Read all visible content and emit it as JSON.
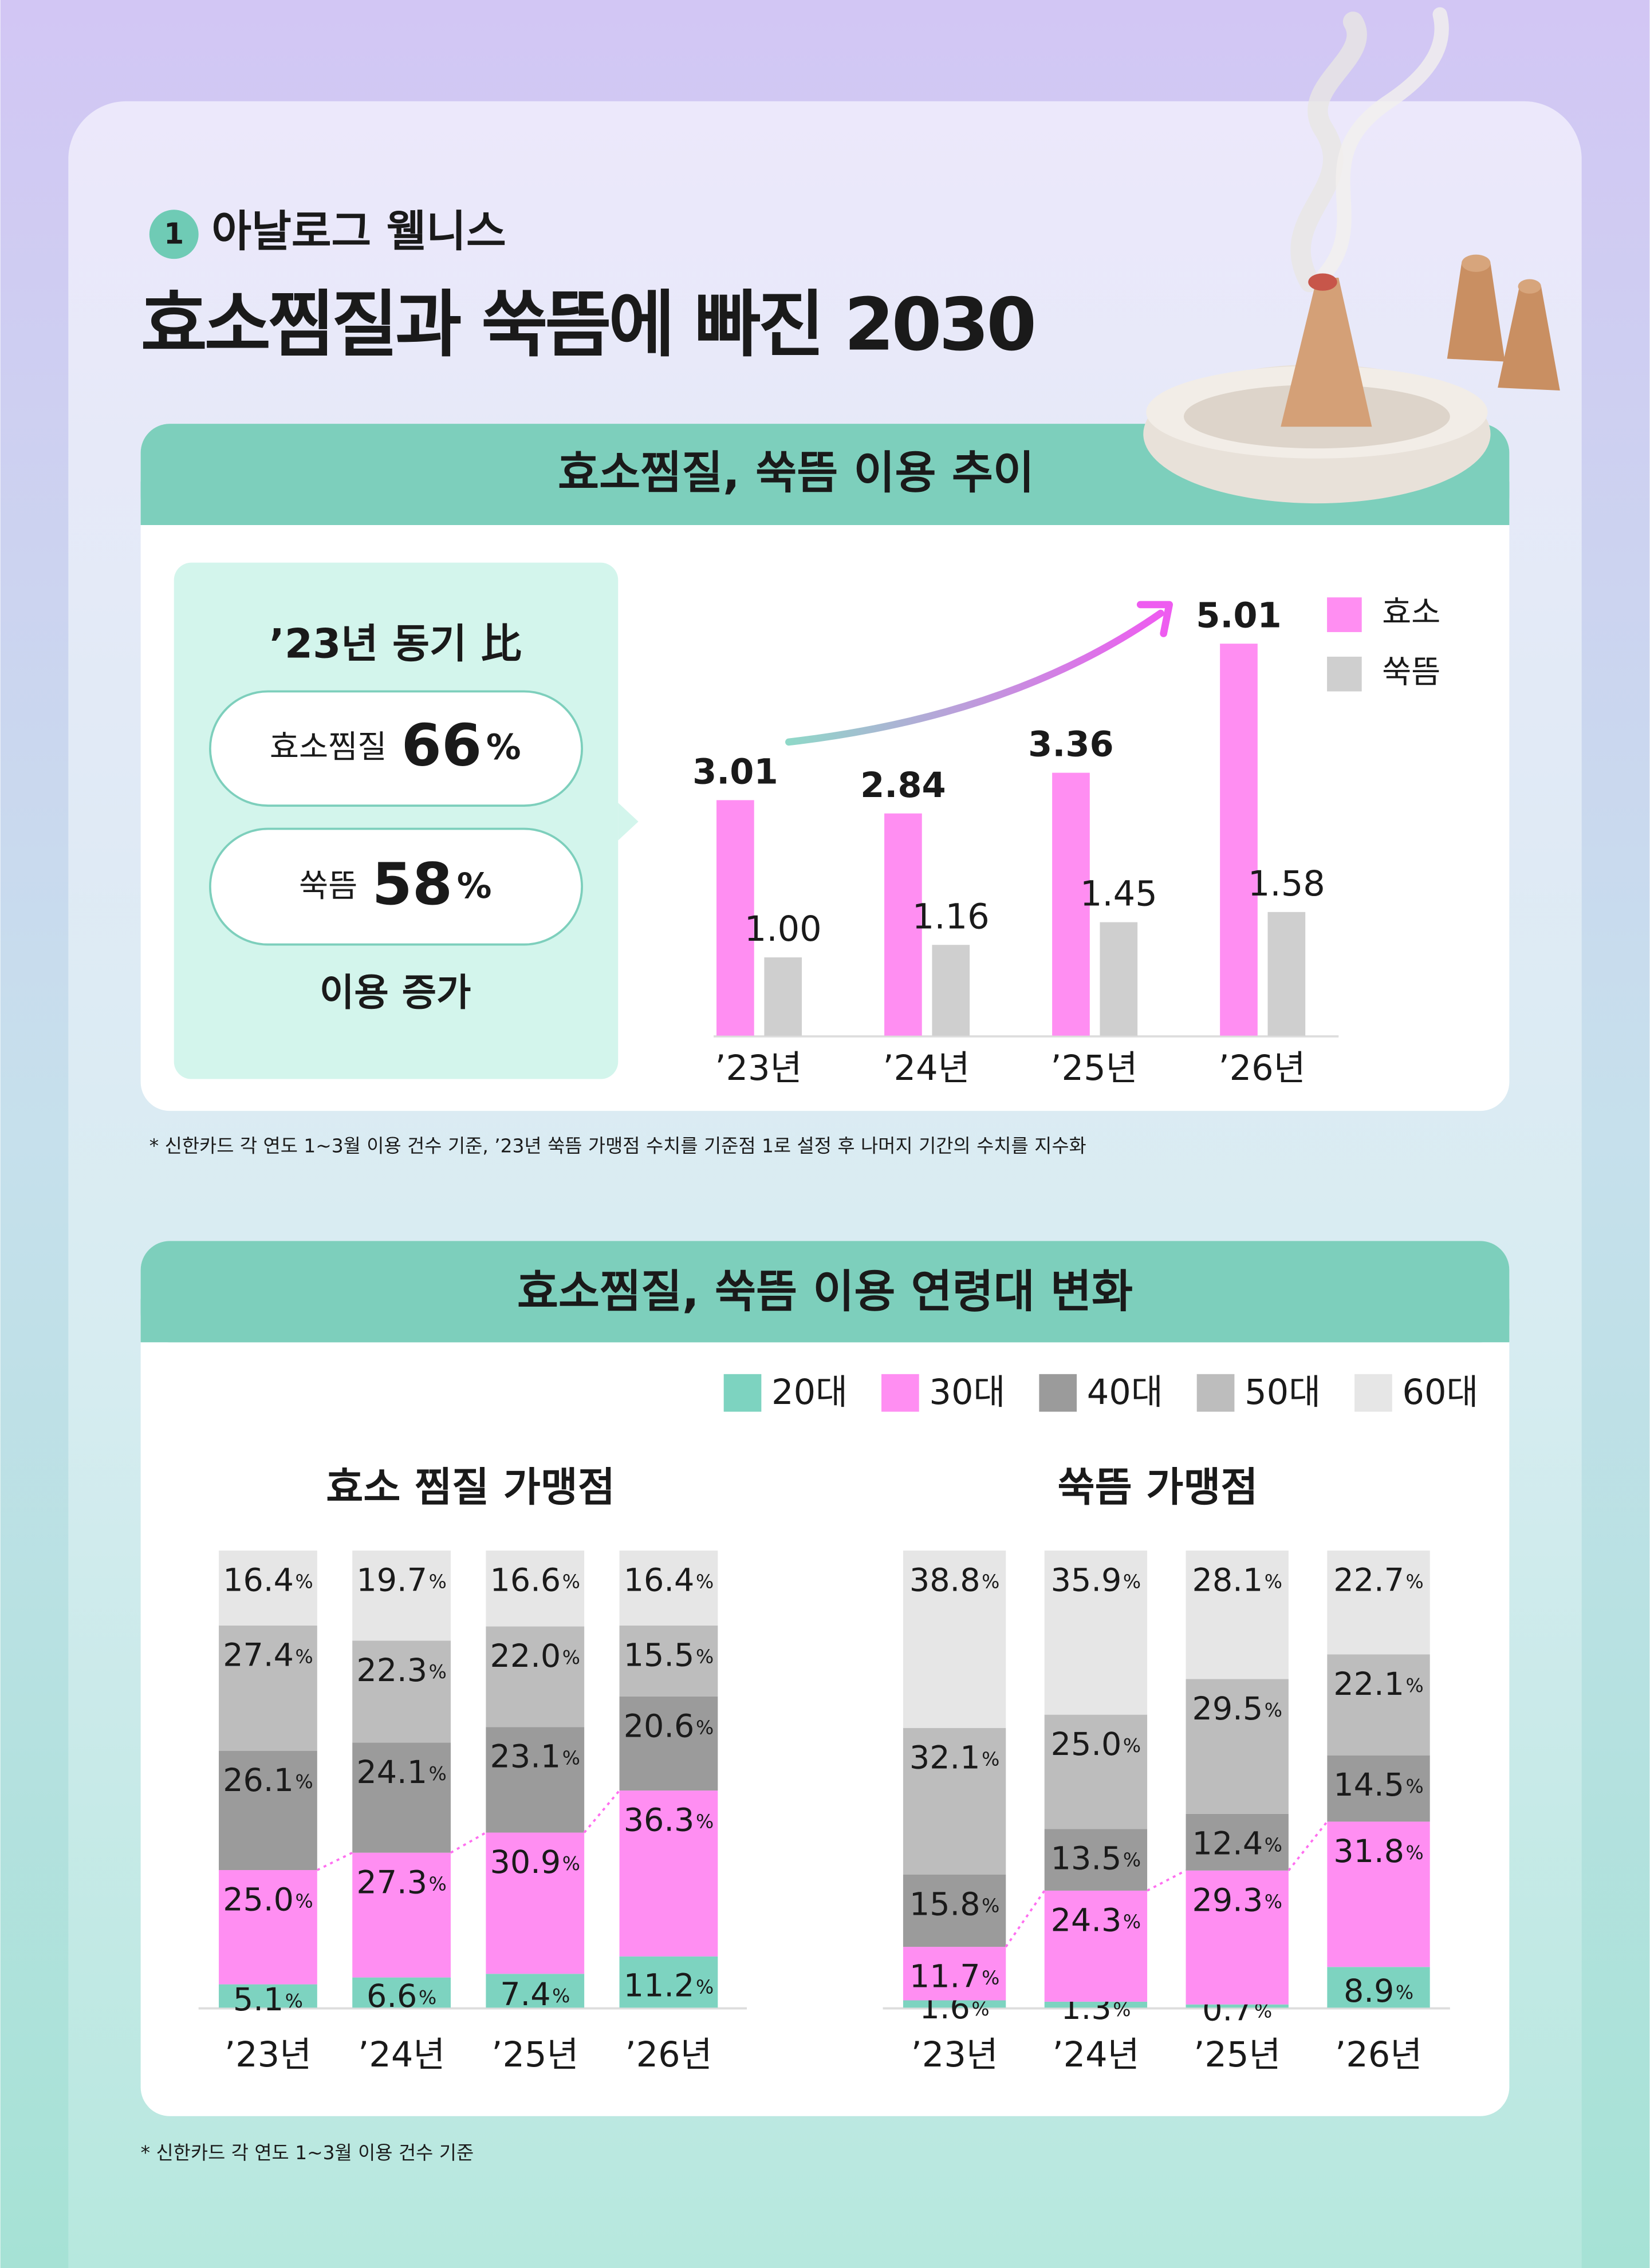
{
  "header": {
    "badge": "1",
    "category": "아날로그 웰니스",
    "title": "효소찜질과 쑥뜸에 빠진 2030"
  },
  "trend_panel": {
    "title": "효소찜질, 쑥뜸 이용 추이",
    "summary": {
      "heading": "’23년 동기 比",
      "items": [
        {
          "label": "효소찜질",
          "value": 66,
          "unit": "%"
        },
        {
          "label": "쑥뜸",
          "value": 58,
          "unit": "%"
        }
      ],
      "footer": "이용 증가"
    },
    "note": "* 신한카드 각 연도 1~3월 이용 건수 기준, ’23년 쑥뜸 가맹점 수치를 기준점 1로 설정 후 나머지 기간의 수치를 지수화"
  },
  "age_panel": {
    "title": "효소찜질, 쑥뜸 이용 연령대 변화",
    "note": "* 신한카드 각 연도 1~3월 이용 건수 기준"
  },
  "chart_data": [
    {
      "type": "bar",
      "legend": "upper right",
      "categories": [
        "’23년",
        "’24년",
        "’25년",
        "’26년"
      ],
      "series": [
        {
          "name": "효소",
          "color": "#ff8ef2",
          "values": [
            3.01,
            2.84,
            3.36,
            5.01
          ]
        },
        {
          "name": "쑥뜸",
          "color": "#cfcfcf",
          "values": [
            1.0,
            1.16,
            1.45,
            1.58
          ],
          "value_labels": [
            "1.00",
            "1.16",
            "1.45",
            "1.58"
          ]
        }
      ]
    },
    {
      "type": "stacked_bar",
      "title": "효소 찜질 가맹점",
      "unit": "%",
      "categories": [
        "’23년",
        "’24년",
        "’25년",
        "’26년"
      ],
      "series": [
        {
          "name": "20대",
          "color": "#7dd3c0",
          "values": [
            5.1,
            6.6,
            7.4,
            11.2
          ],
          "value_labels": [
            "5.1",
            "6.6",
            "7.4",
            "11.2"
          ]
        },
        {
          "name": "30대",
          "color": "#ff8ef2",
          "values": [
            25.0,
            27.3,
            30.9,
            36.3
          ],
          "value_labels": [
            "25.0",
            "27.3",
            "30.9",
            "36.3"
          ]
        },
        {
          "name": "40대",
          "color": "#9b9b9b",
          "values": [
            26.1,
            24.1,
            23.1,
            20.6
          ],
          "value_labels": [
            "26.1",
            "24.1",
            "23.1",
            "20.6"
          ]
        },
        {
          "name": "50대",
          "color": "#bdbdbd",
          "values": [
            27.4,
            22.3,
            22.0,
            15.5
          ],
          "value_labels": [
            "27.4",
            "22.3",
            "22.0",
            "15.5"
          ]
        },
        {
          "name": "60대",
          "color": "#e6e6e6",
          "values": [
            16.4,
            19.7,
            16.6,
            16.4
          ],
          "value_labels": [
            "16.4",
            "19.7",
            "16.6",
            "16.4"
          ]
        }
      ]
    },
    {
      "type": "stacked_bar",
      "title": "쑥뜸 가맹점",
      "unit": "%",
      "categories": [
        "’23년",
        "’24년",
        "’25년",
        "’26년"
      ],
      "series": [
        {
          "color": "#7dd3c0",
          "values": [
            1.6,
            1.3,
            0.7,
            8.9
          ],
          "value_labels": [
            "1.6",
            "1.3",
            "0.7",
            "8.9"
          ]
        },
        {
          "color": "#ff8ef2",
          "values": [
            11.7,
            24.3,
            29.3,
            31.8
          ],
          "value_labels": [
            "11.7",
            "24.3",
            "29.3",
            "31.8"
          ]
        },
        {
          "color": "#9b9b9b",
          "values": [
            15.8,
            13.5,
            12.4,
            14.5
          ],
          "value_labels": [
            "15.8",
            "13.5",
            "12.4",
            "14.5"
          ]
        },
        {
          "color": "#bdbdbd",
          "values": [
            32.1,
            25.0,
            29.5,
            22.1
          ],
          "value_labels": [
            "32.1",
            "25.0",
            "29.5",
            "22.1"
          ]
        },
        {
          "color": "#e6e6e6",
          "values": [
            38.8,
            35.9,
            28.1,
            22.7
          ],
          "value_labels": [
            "38.8",
            "35.9",
            "28.1",
            "22.7"
          ]
        }
      ]
    }
  ]
}
